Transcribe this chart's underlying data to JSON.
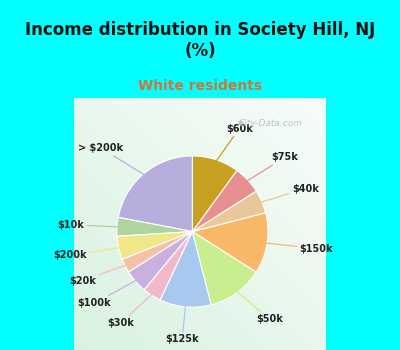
{
  "title": "Income distribution in Society Hill, NJ\n(%)",
  "subtitle": "White residents",
  "title_color": "#111111",
  "subtitle_color": "#c8783c",
  "background_cyan": "#00ffff",
  "watermark": "City-Data.com",
  "labels": [
    "> $200k",
    "$10k",
    "$200k",
    "$20k",
    "$100k",
    "$30k",
    "$125k",
    "$50k",
    "$150k",
    "$40k",
    "$75k",
    "$60k"
  ],
  "values": [
    22,
    4,
    5,
    3,
    5,
    4,
    11,
    12,
    13,
    5,
    6,
    10
  ],
  "colors": [
    "#b8aedd",
    "#b0d4a0",
    "#f0e888",
    "#f5c0a8",
    "#c8b0e0",
    "#f0b8c8",
    "#a8c8f0",
    "#c8ee90",
    "#f8b868",
    "#e8c898",
    "#e89090",
    "#c8a020"
  ],
  "figsize": [
    4.0,
    3.5
  ],
  "dpi": 100,
  "title_fontsize": 12,
  "subtitle_fontsize": 10,
  "label_fontsize": 7
}
